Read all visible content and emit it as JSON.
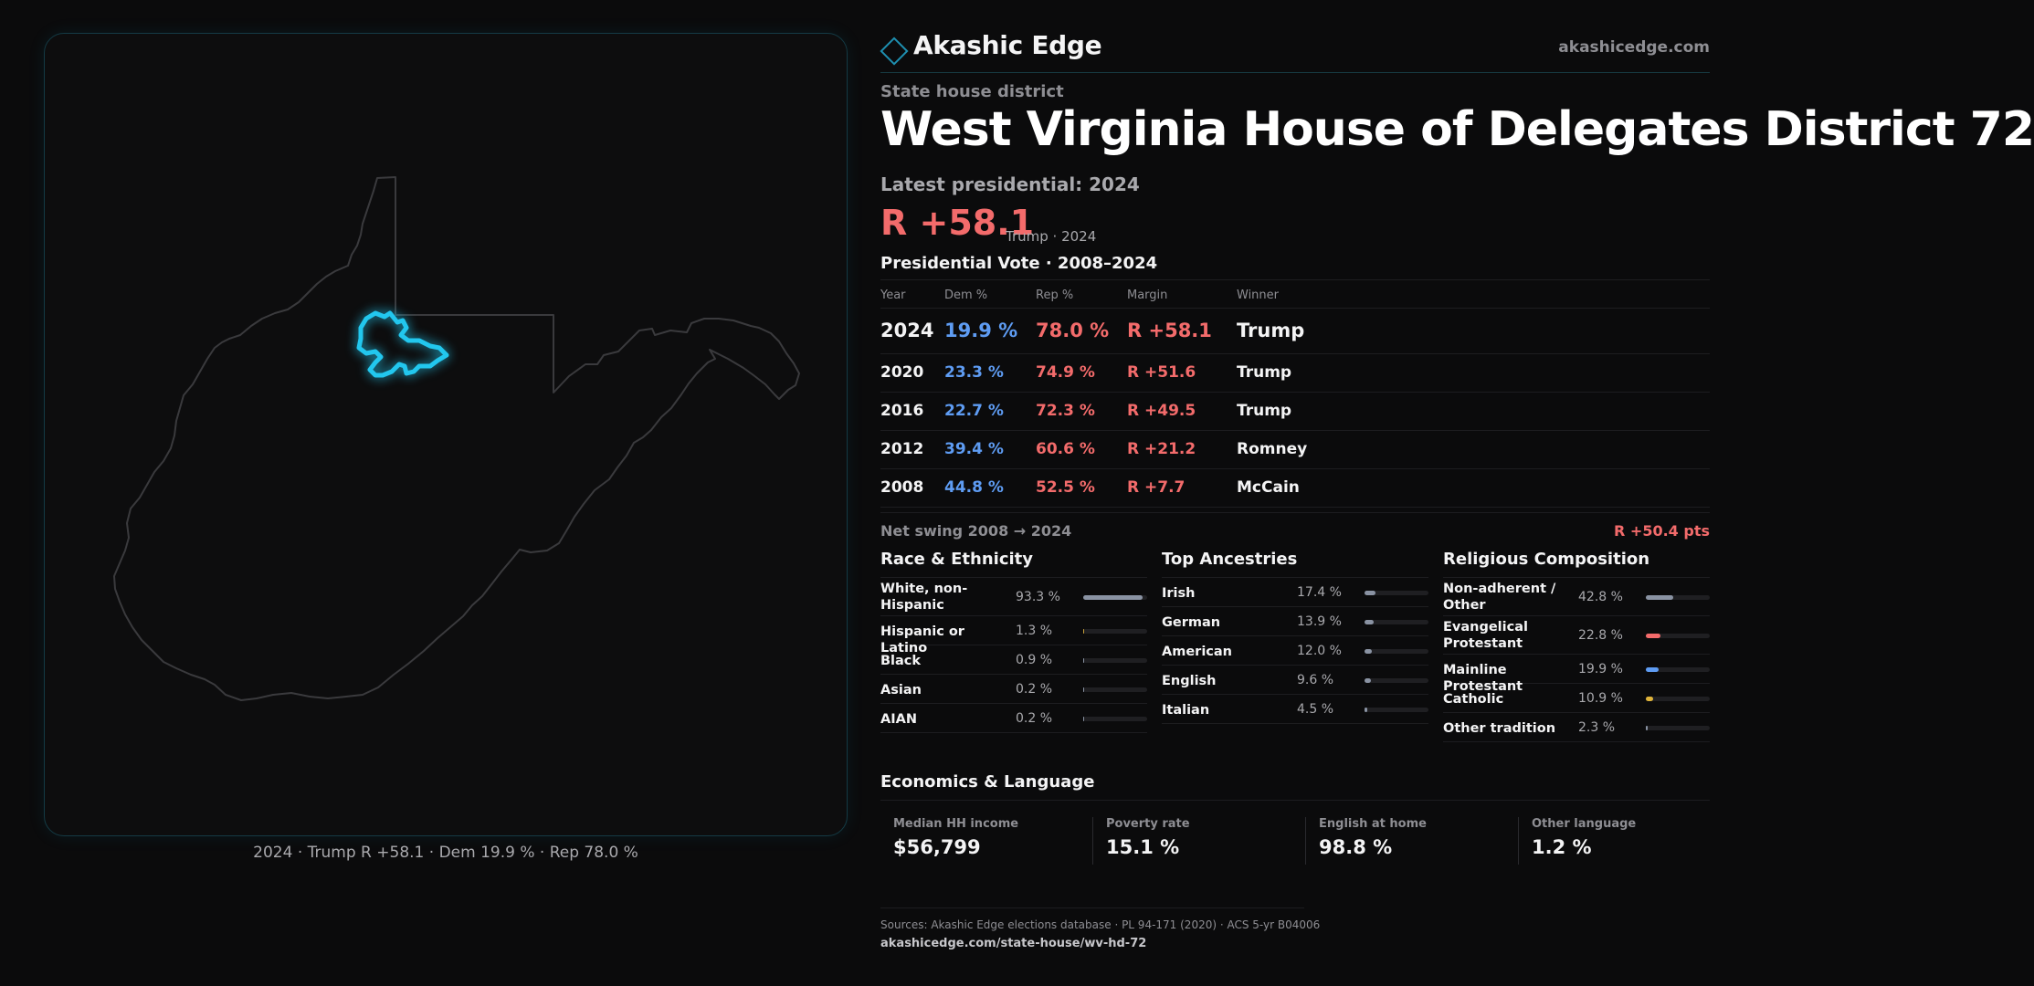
{
  "brand": {
    "name": "Akashic Edge",
    "url": "akashicedge.com"
  },
  "header": {
    "eyebrow": "State house district",
    "title": "West Virginia House of Delegates District 72",
    "latest_label": "Latest presidential: 2024",
    "margin": "R +58.1",
    "margin_sub": "Trump · 2024"
  },
  "map": {
    "caption": "2024 · Trump R +58.1 · Dem 19.9 % · Rep 78.0 %",
    "state_outline_color": "#3a3a3d",
    "district_color": "#22c7ee"
  },
  "vote_table": {
    "title": "Presidential Vote · 2008–2024",
    "columns": [
      "Year",
      "Dem %",
      "Rep %",
      "Margin",
      "Winner"
    ],
    "rows": [
      {
        "year": "2024",
        "dem": "19.9 %",
        "rep": "78.0 %",
        "margin": "R +58.1",
        "winner": "Trump"
      },
      {
        "year": "2020",
        "dem": "23.3 %",
        "rep": "74.9 %",
        "margin": "R +51.6",
        "winner": "Trump"
      },
      {
        "year": "2016",
        "dem": "22.7 %",
        "rep": "72.3 %",
        "margin": "R +49.5",
        "winner": "Trump"
      },
      {
        "year": "2012",
        "dem": "39.4 %",
        "rep": "60.6 %",
        "margin": "R +21.2",
        "winner": "Romney"
      },
      {
        "year": "2008",
        "dem": "44.8 %",
        "rep": "52.5 %",
        "margin": "R +7.7",
        "winner": "McCain"
      }
    ],
    "swing_label": "Net swing 2008 → 2024",
    "swing_value": "R +50.4 pts"
  },
  "race": {
    "title": "Race & Ethnicity",
    "rows": [
      {
        "label": "White, non-Hispanic",
        "pct": "93.3 %",
        "value": 93.3,
        "color": "#8a93a3"
      },
      {
        "label": "Hispanic or Latino",
        "pct": "1.3 %",
        "value": 1.3,
        "color": "#c9a23a"
      },
      {
        "label": "Black",
        "pct": "0.9 %",
        "value": 0.9,
        "color": "#8a93a3"
      },
      {
        "label": "Asian",
        "pct": "0.2 %",
        "value": 0.2,
        "color": "#8a93a3"
      },
      {
        "label": "AIAN",
        "pct": "0.2 %",
        "value": 0.2,
        "color": "#8a93a3"
      }
    ]
  },
  "ancestry": {
    "title": "Top Ancestries",
    "rows": [
      {
        "label": "Irish",
        "pct": "17.4 %",
        "value": 17.4,
        "color": "#8a93a3"
      },
      {
        "label": "German",
        "pct": "13.9 %",
        "value": 13.9,
        "color": "#8a93a3"
      },
      {
        "label": "American",
        "pct": "12.0 %",
        "value": 12.0,
        "color": "#8a93a3"
      },
      {
        "label": "English",
        "pct": "9.6 %",
        "value": 9.6,
        "color": "#8a93a3"
      },
      {
        "label": "Italian",
        "pct": "4.5 %",
        "value": 4.5,
        "color": "#8a93a3"
      }
    ]
  },
  "religion": {
    "title": "Religious Composition",
    "rows": [
      {
        "label": "Non-adherent / Other",
        "pct": "42.8 %",
        "value": 42.8,
        "color": "#8a93a3"
      },
      {
        "label": "Evangelical Protestant",
        "pct": "22.8 %",
        "value": 22.8,
        "color": "#f36b6b"
      },
      {
        "label": "Mainline Protestant",
        "pct": "19.9 %",
        "value": 19.9,
        "color": "#5e9cf3"
      },
      {
        "label": "Catholic",
        "pct": "10.9 %",
        "value": 10.9,
        "color": "#e0b43a"
      },
      {
        "label": "Other tradition",
        "pct": "2.3 %",
        "value": 2.3,
        "color": "#8a93a3"
      }
    ]
  },
  "economics": {
    "title": "Economics & Language",
    "cells": [
      {
        "label": "Median HH income",
        "value": "$56,799"
      },
      {
        "label": "Poverty rate",
        "value": "15.1 %"
      },
      {
        "label": "English at home",
        "value": "98.8 %"
      },
      {
        "label": "Other language",
        "value": "1.2 %"
      }
    ]
  },
  "footer": {
    "sources": "Sources: Akashic Edge elections database · PL 94-171 (2020) · ACS 5-yr B04006",
    "link": "akashicedge.com/state-house/wv-hd-72"
  }
}
